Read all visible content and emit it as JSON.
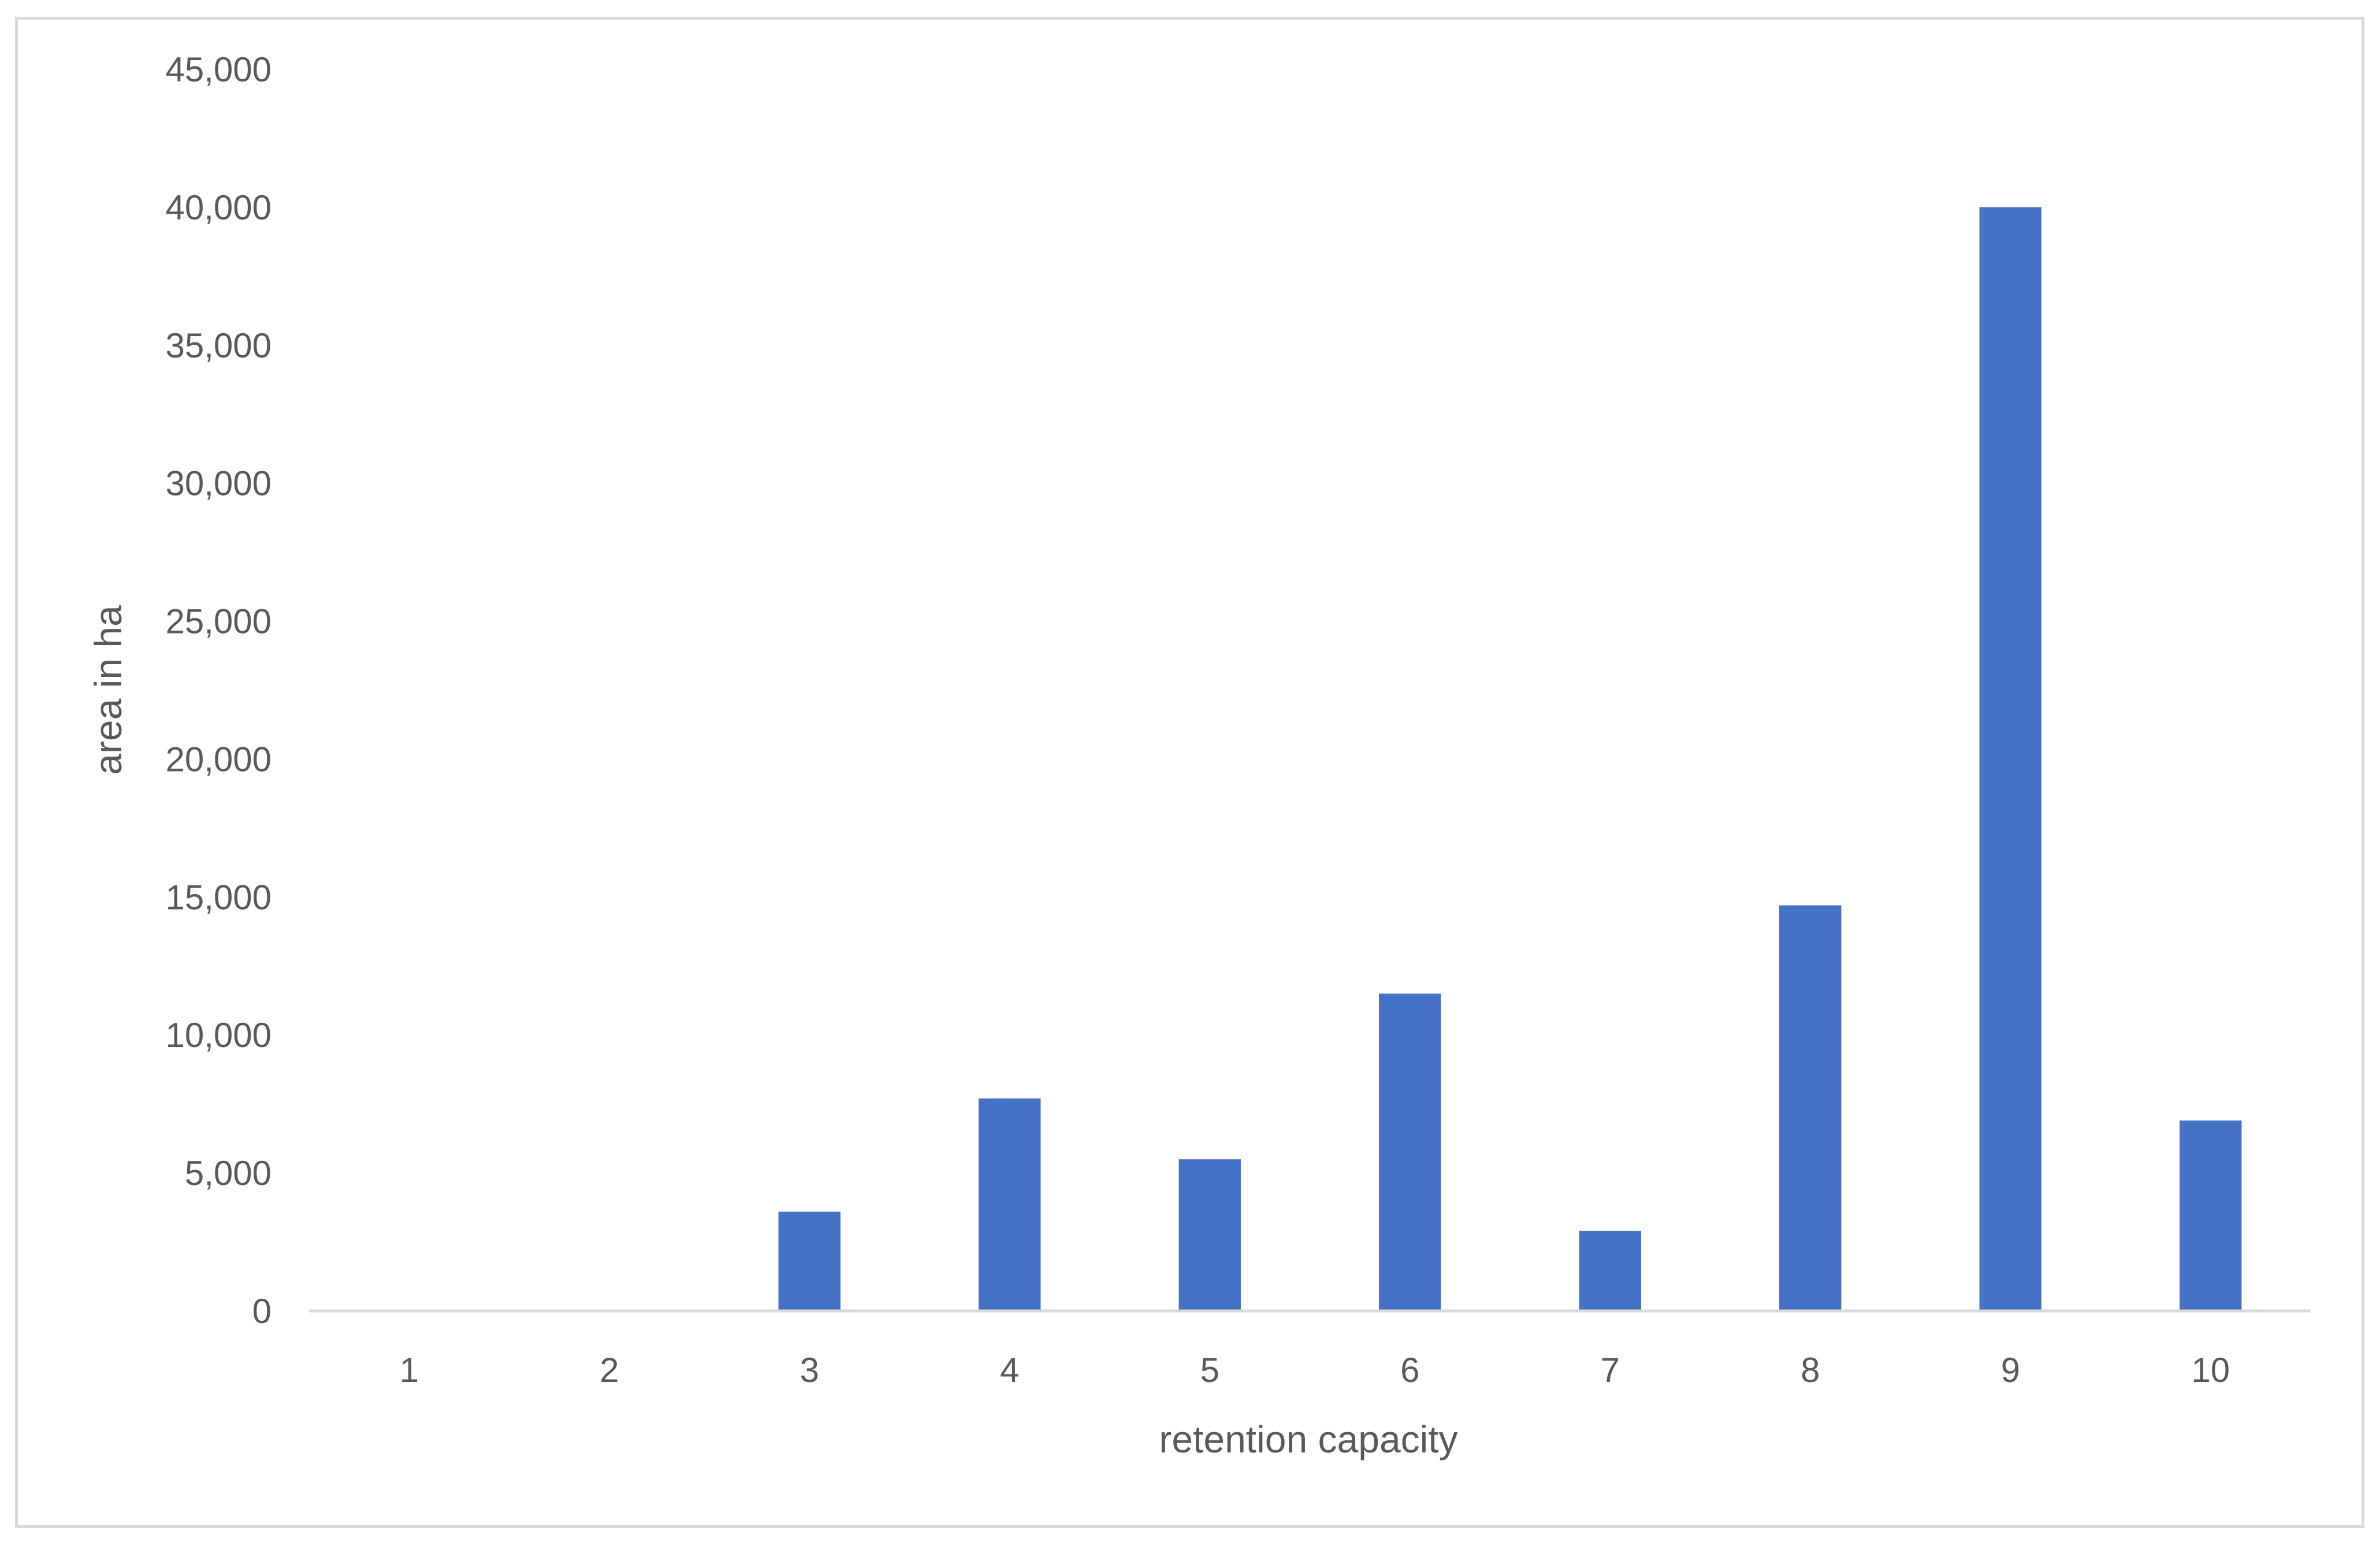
{
  "chart_data": {
    "type": "bar",
    "title": "",
    "xlabel": "retention capacity",
    "ylabel": "area in ha",
    "categories": [
      "1",
      "2",
      "3",
      "4",
      "5",
      "6",
      "7",
      "8",
      "9",
      "10"
    ],
    "values": [
      0,
      0,
      3600,
      7700,
      5500,
      11500,
      2900,
      14700,
      40000,
      6900
    ],
    "ylim": [
      0,
      45000
    ],
    "yticks": [
      0,
      5000,
      10000,
      15000,
      20000,
      25000,
      30000,
      35000,
      40000,
      45000
    ],
    "ytick_labels": [
      "0",
      "5,000",
      "10,000",
      "15,000",
      "20,000",
      "25,000",
      "30,000",
      "35,000",
      "40,000",
      "45,000"
    ],
    "grid": false,
    "legend": "none",
    "bar_color": "#4472c4",
    "axis_color": "#d9d9d9",
    "text_color": "#595959"
  }
}
